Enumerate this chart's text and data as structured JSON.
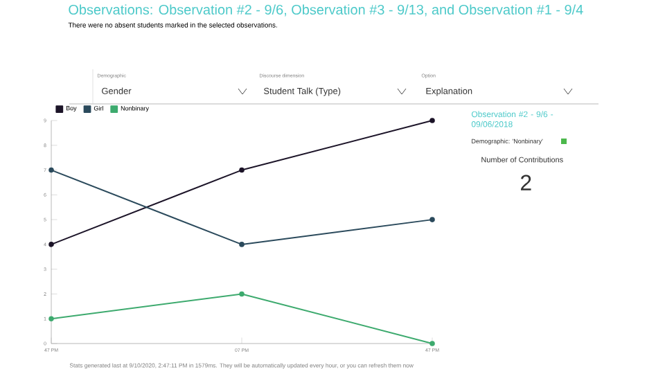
{
  "chart_data": {
    "type": "line",
    "title": "Observations: Observation #2 - 9/6, Observation #3 - 9/13, and Observation #1 - 9/4",
    "subtitle": "There were no absent students marked in the selected observations.",
    "categories": [
      "47 PM",
      "07 PM",
      "47 PM"
    ],
    "series": [
      {
        "name": "Boy",
        "color": "#1c1428",
        "values": [
          4,
          7,
          9
        ]
      },
      {
        "name": "Girl",
        "color": "#2b4a5c",
        "values": [
          7,
          4,
          5
        ]
      },
      {
        "name": "Nonbinary",
        "color": "#3daa6e",
        "values": [
          1,
          2,
          0
        ]
      }
    ],
    "ylim": [
      0,
      9
    ],
    "yticks": [
      0,
      1,
      2,
      3,
      4,
      5,
      6,
      7,
      8,
      9
    ],
    "legend": "top left",
    "marker": "circle",
    "line_style": "solid",
    "grid": false,
    "annotations": [
      "Demographic",
      "Gender",
      "Discourse dimension",
      "Student Talk (Type)",
      "Option",
      "Explanation",
      "Observation #2 - 9/6 - 09/06/2018",
      "Demographic: 'Nonbinary'",
      "Number of Contributions",
      "2",
      "Stats generated last at 9/10/2020, 2:47:11 PM in 1579ms. They will be automatically updated every hour, or you can refresh them now"
    ]
  }
}
